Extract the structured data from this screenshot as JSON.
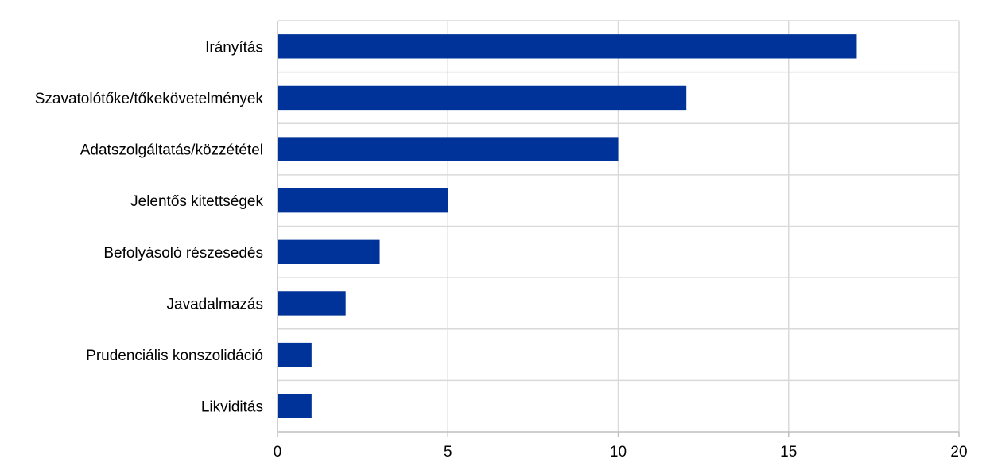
{
  "chart_data": {
    "type": "bar",
    "orientation": "horizontal",
    "categories": [
      "Irányítás",
      "Szavatolótőke/tőkekövetelmények",
      "Adatszolgáltatás/közzététel",
      "Jelentős kitettségek",
      "Befolyásoló részesedés",
      "Javadalmazás",
      "Prudenciális konszolidáció",
      "Likviditás"
    ],
    "values": [
      17,
      12,
      10,
      5,
      3,
      2,
      1,
      1
    ],
    "xlim": [
      0,
      20
    ],
    "xticks": [
      "0",
      "5",
      "10",
      "15",
      "20"
    ],
    "title": "",
    "xlabel": "",
    "ylabel": "",
    "grid": true,
    "legend": "none",
    "bar_color": "#003399",
    "grid_color": "#d9d9d9"
  }
}
